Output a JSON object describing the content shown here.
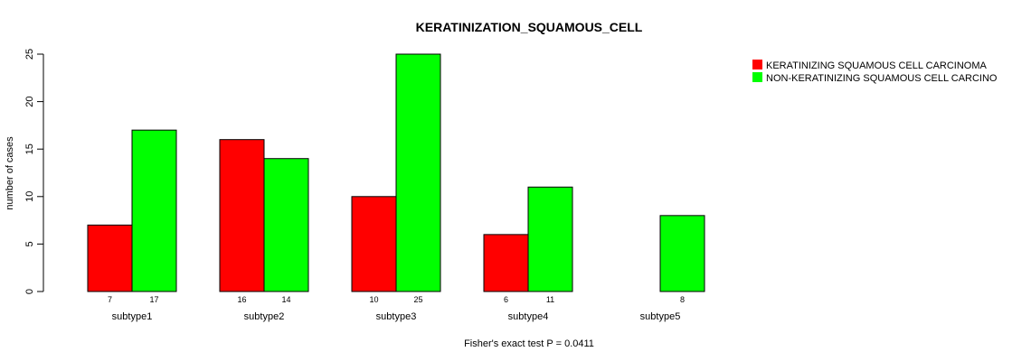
{
  "chart_data": {
    "type": "bar",
    "title": "KERATINIZATION_SQUAMOUS_CELL",
    "xlabel": "",
    "ylabel": "number of cases",
    "footnote": "Fisher's exact test P = 0.0411",
    "categories": [
      "subtype1",
      "subtype2",
      "subtype3",
      "subtype4",
      "subtype5"
    ],
    "series": [
      {
        "name": "KERATINIZING SQUAMOUS CELL CARCINOMA",
        "color": "#ff0000",
        "values": [
          7,
          16,
          10,
          6,
          0
        ],
        "labels": [
          "7",
          "16",
          "10",
          "6",
          ""
        ]
      },
      {
        "name": "NON-KERATINIZING SQUAMOUS CELL CARCINO",
        "color": "#00ff00",
        "values": [
          17,
          14,
          25,
          11,
          8
        ],
        "labels": [
          "17",
          "14",
          "25",
          "11",
          "8"
        ]
      }
    ],
    "ylim": [
      0,
      25
    ],
    "yticks": [
      "0",
      "5",
      "10",
      "15",
      "20",
      "25"
    ],
    "grid": false,
    "legend_position": "top-right"
  }
}
